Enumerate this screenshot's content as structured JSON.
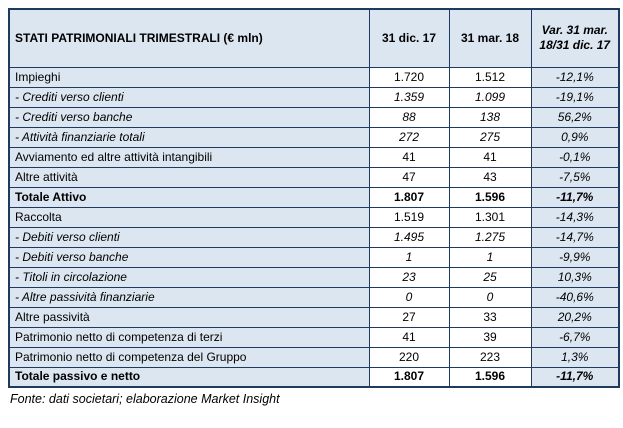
{
  "colors": {
    "row_bg": "#dce6f1",
    "value_bg": "#ffffff",
    "border": "#1f3a5f"
  },
  "table": {
    "header": {
      "title": "STATI PATRIMONIALI TRIMESTRALI (€ mln)",
      "col_dec17": "31 dic. 17",
      "col_mar18": "31 mar. 18",
      "col_var": "Var. 31 mar. 18/31 dic. 17"
    },
    "rows": [
      {
        "label": "Impieghi",
        "v1": "1.720",
        "v2": "1.512",
        "var_pct": "-12,1%",
        "style": "normal"
      },
      {
        "label": "- Crediti verso clienti",
        "v1": "1.359",
        "v2": "1.099",
        "var_pct": "-19,1%",
        "style": "sub"
      },
      {
        "label": "- Crediti verso banche",
        "v1": "88",
        "v2": "138",
        "var_pct": "56,2%",
        "style": "sub"
      },
      {
        "label": "- Attività finanziarie totali",
        "v1": "272",
        "v2": "275",
        "var_pct": "0,9%",
        "style": "sub"
      },
      {
        "label": "Avviamento ed altre attività intangibili",
        "v1": "41",
        "v2": "41",
        "var_pct": "-0,1%",
        "style": "normal"
      },
      {
        "label": "Altre attività",
        "v1": "47",
        "v2": "43",
        "var_pct": "-7,5%",
        "style": "normal"
      },
      {
        "label": "Totale Attivo",
        "v1": "1.807",
        "v2": "1.596",
        "var_pct": "-11,7%",
        "style": "total"
      },
      {
        "label": "Raccolta",
        "v1": "1.519",
        "v2": "1.301",
        "var_pct": "-14,3%",
        "style": "normal"
      },
      {
        "label": "- Debiti verso clienti",
        "v1": "1.495",
        "v2": "1.275",
        "var_pct": "-14,7%",
        "style": "sub"
      },
      {
        "label": "- Debiti verso banche",
        "v1": "1",
        "v2": "1",
        "var_pct": "-9,9%",
        "style": "sub"
      },
      {
        "label": "- Titoli in circolazione",
        "v1": "23",
        "v2": "25",
        "var_pct": "10,3%",
        "style": "sub"
      },
      {
        "label": "- Altre passività finanziarie",
        "v1": "0",
        "v2": "0",
        "var_pct": "-40,6%",
        "style": "sub"
      },
      {
        "label": "Altre passività",
        "v1": "27",
        "v2": "33",
        "var_pct": "20,2%",
        "style": "normal"
      },
      {
        "label": "Patrimonio netto di competenza di terzi",
        "v1": "41",
        "v2": "39",
        "var_pct": "-6,7%",
        "style": "normal"
      },
      {
        "label": "Patrimonio netto di competenza del Gruppo",
        "v1": "220",
        "v2": "223",
        "var_pct": "1,3%",
        "style": "normal"
      },
      {
        "label": "Totale passivo e netto",
        "v1": "1.807",
        "v2": "1.596",
        "var_pct": "-11,7%",
        "style": "total"
      }
    ],
    "footer": "Fonte: dati societari; elaborazione Market Insight"
  }
}
